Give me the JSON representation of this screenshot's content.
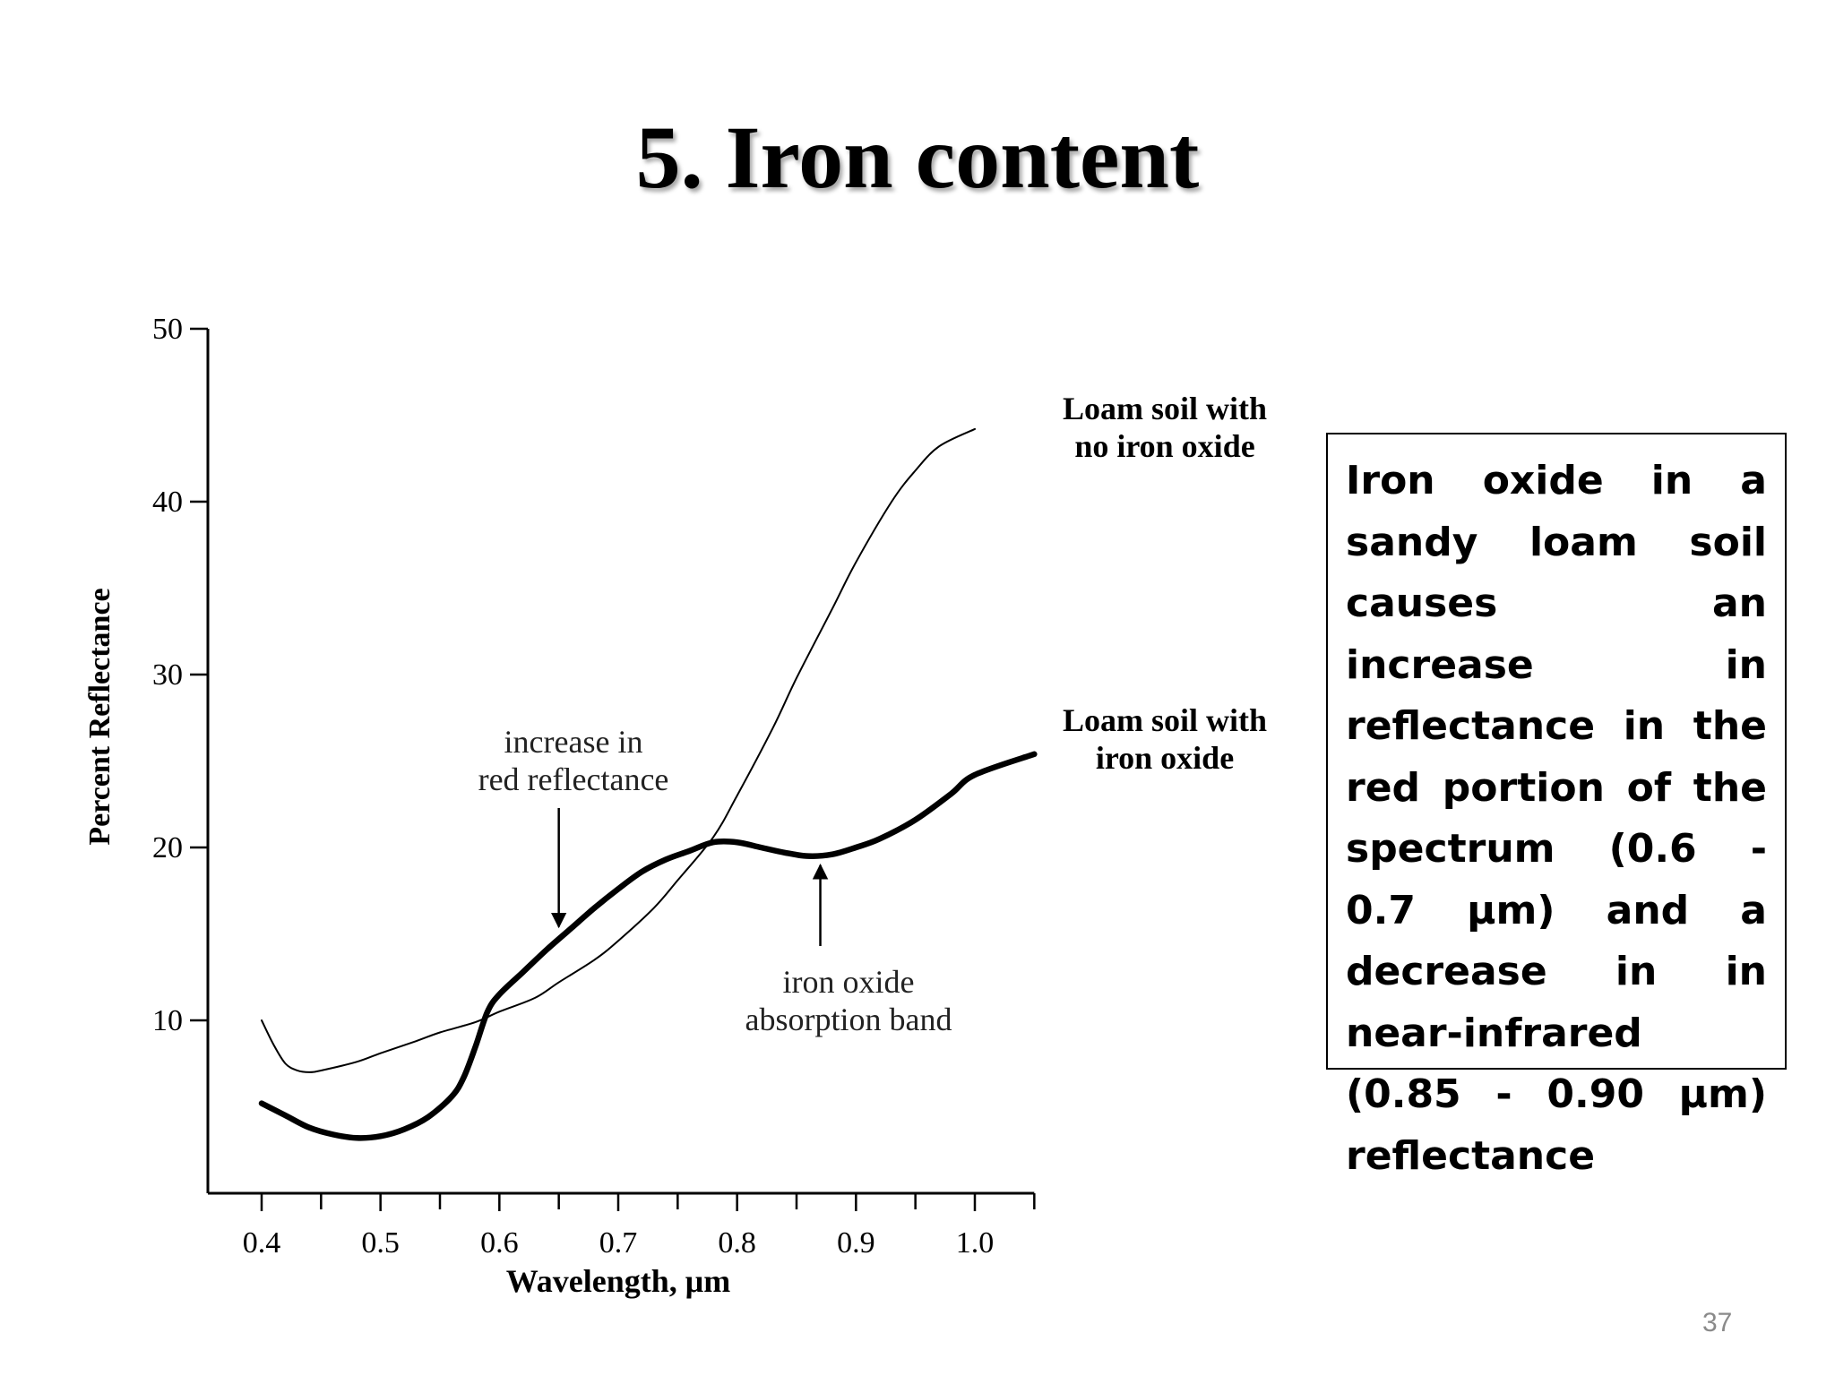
{
  "slide": {
    "title": "5. Iron content",
    "page_number": "37"
  },
  "note": {
    "text": "Iron oxide in a sandy loam soil causes an increase in reflectance in the red portion of the spectrum (0.6 - 0.7 μm) and a decrease in in near-infrared (0.85 - 0.90 μm) reflectance"
  },
  "chart_data": {
    "type": "line",
    "title": "",
    "xlabel": "Wavelength, μm",
    "ylabel": "Percent Reflectance",
    "xlim": [
      0.4,
      1.05
    ],
    "ylim": [
      0,
      50
    ],
    "x_ticks": [
      "0.4",
      "0.5",
      "0.6",
      "0.7",
      "0.8",
      "0.9",
      "1.0"
    ],
    "y_ticks": [
      "10",
      "20",
      "30",
      "40",
      "50"
    ],
    "grid": false,
    "legend": "none",
    "series": [
      {
        "name": "Loam soil with no iron oxide",
        "label_lines": [
          "Loam soil with",
          "no iron oxide"
        ],
        "color": "#000000",
        "weight": "thin",
        "points": [
          [
            0.4,
            10.0
          ],
          [
            0.41,
            8.6
          ],
          [
            0.42,
            7.5
          ],
          [
            0.43,
            7.1
          ],
          [
            0.44,
            7.0
          ],
          [
            0.45,
            7.1
          ],
          [
            0.48,
            7.6
          ],
          [
            0.5,
            8.1
          ],
          [
            0.53,
            8.8
          ],
          [
            0.55,
            9.3
          ],
          [
            0.58,
            9.9
          ],
          [
            0.6,
            10.5
          ],
          [
            0.63,
            11.3
          ],
          [
            0.65,
            12.2
          ],
          [
            0.68,
            13.5
          ],
          [
            0.7,
            14.6
          ],
          [
            0.73,
            16.5
          ],
          [
            0.75,
            18.1
          ],
          [
            0.78,
            20.6
          ],
          [
            0.8,
            23.0
          ],
          [
            0.83,
            26.9
          ],
          [
            0.85,
            29.8
          ],
          [
            0.88,
            33.8
          ],
          [
            0.9,
            36.5
          ],
          [
            0.93,
            40.0
          ],
          [
            0.95,
            41.8
          ],
          [
            0.97,
            43.2
          ],
          [
            1.0,
            44.2
          ]
        ]
      },
      {
        "name": "Loam soil with iron oxide",
        "label_lines": [
          "Loam soil with",
          "iron oxide"
        ],
        "color": "#000000",
        "weight": "thick",
        "points": [
          [
            0.4,
            5.2
          ],
          [
            0.42,
            4.5
          ],
          [
            0.44,
            3.8
          ],
          [
            0.46,
            3.4
          ],
          [
            0.48,
            3.2
          ],
          [
            0.5,
            3.3
          ],
          [
            0.52,
            3.7
          ],
          [
            0.54,
            4.4
          ],
          [
            0.56,
            5.6
          ],
          [
            0.57,
            6.7
          ],
          [
            0.58,
            8.5
          ],
          [
            0.59,
            10.5
          ],
          [
            0.6,
            11.5
          ],
          [
            0.62,
            12.8
          ],
          [
            0.64,
            14.1
          ],
          [
            0.66,
            15.3
          ],
          [
            0.68,
            16.5
          ],
          [
            0.7,
            17.6
          ],
          [
            0.72,
            18.6
          ],
          [
            0.74,
            19.3
          ],
          [
            0.76,
            19.8
          ],
          [
            0.78,
            20.3
          ],
          [
            0.8,
            20.3
          ],
          [
            0.82,
            20.0
          ],
          [
            0.84,
            19.7
          ],
          [
            0.86,
            19.5
          ],
          [
            0.88,
            19.6
          ],
          [
            0.9,
            20.0
          ],
          [
            0.92,
            20.5
          ],
          [
            0.95,
            21.6
          ],
          [
            0.98,
            23.1
          ],
          [
            1.0,
            24.2
          ],
          [
            1.05,
            25.4
          ]
        ]
      }
    ],
    "annotations": [
      {
        "text_lines": [
          "increase in",
          "red reflectance"
        ],
        "arrow_to": [
          0.65,
          15.0
        ],
        "arrow_direction": "down"
      },
      {
        "text_lines": [
          "iron oxide",
          "absorption band"
        ],
        "arrow_to": [
          0.87,
          19.7
        ],
        "arrow_direction": "up"
      }
    ]
  }
}
